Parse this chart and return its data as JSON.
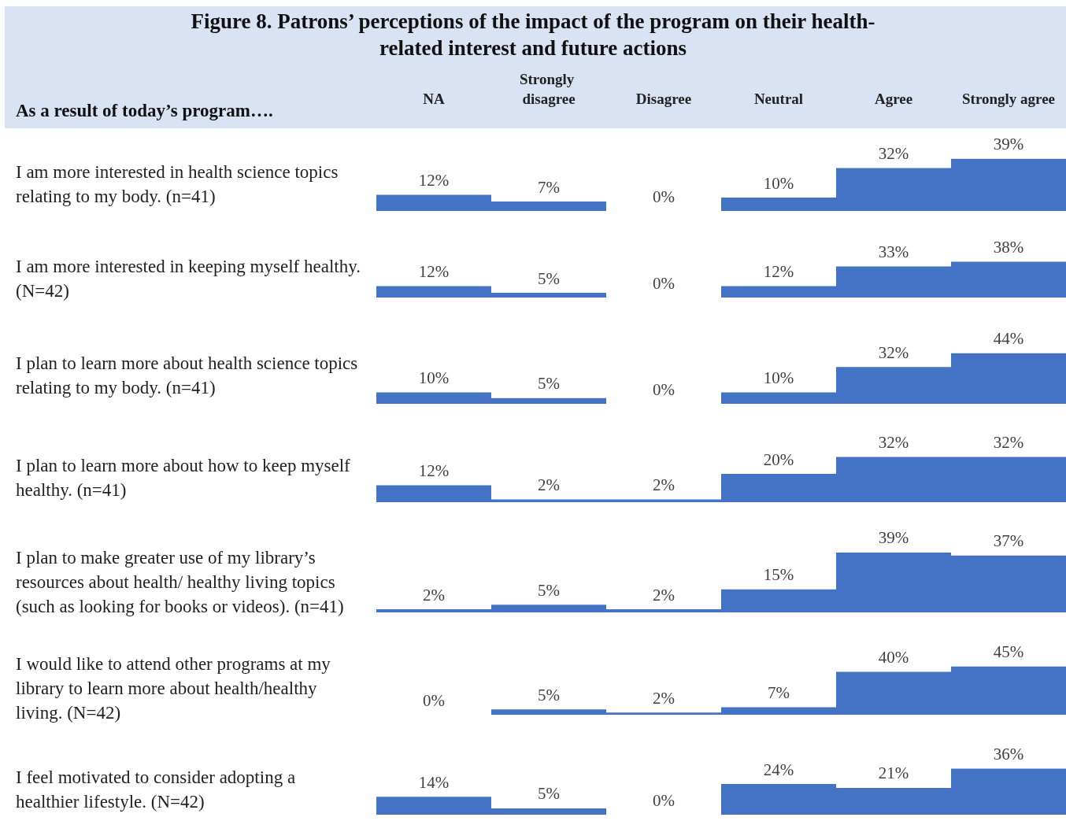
{
  "chart_data": [
    {
      "type": "bar",
      "title": "Figure 8. Patrons’ perceptions of the impact of the program on their health-related interest and future actions",
      "subtitle": "As a result of today’s program….",
      "ylabel": "I am more interested in health science topics relating to my body. (n=41)",
      "categories": [
        "NA",
        "Strongly disagree",
        "Disagree",
        "Neutral",
        "Agree",
        "Strongly agree"
      ],
      "values": [
        12,
        7,
        0,
        10,
        32,
        39
      ],
      "value_labels": [
        "12%",
        "7%",
        "0%",
        "10%",
        "32%",
        "39%"
      ],
      "color": "#4472c4",
      "tick_labels": "x"
    },
    {
      "type": "bar",
      "ylabel": "I am more interested in keeping myself healthy. (N=42)",
      "categories": [
        "NA",
        "Strongly disagree",
        "Disagree",
        "Neutral",
        "Agree",
        "Strongly agree"
      ],
      "values": [
        12,
        5,
        0,
        12,
        33,
        38
      ],
      "value_labels": [
        "12%",
        "5%",
        "0%",
        "12%",
        "33%",
        "38%"
      ],
      "color": "#4472c4",
      "tick_labels": false
    },
    {
      "type": "bar",
      "ylabel": "I plan to learn more about health science topics relating to my body. (n=41)",
      "categories": [
        "NA",
        "Strongly disagree",
        "Disagree",
        "Neutral",
        "Agree",
        "Strongly agree"
      ],
      "values": [
        10,
        5,
        0,
        10,
        32,
        44
      ],
      "value_labels": [
        "10%",
        "5%",
        "0%",
        "10%",
        "32%",
        "44%"
      ],
      "color": "#4472c4",
      "tick_labels": false
    },
    {
      "type": "bar",
      "ylabel": "I plan to learn more about how to keep myself healthy. (n=41)",
      "categories": [
        "NA",
        "Strongly disagree",
        "Disagree",
        "Neutral",
        "Agree",
        "Strongly agree"
      ],
      "values": [
        12,
        2,
        2,
        20,
        32,
        32
      ],
      "value_labels": [
        "12%",
        "2%",
        "2%",
        "20%",
        "32%",
        "32%"
      ],
      "color": "#4472c4",
      "tick_labels": false
    },
    {
      "type": "bar",
      "ylabel": "I plan to make greater use of my library’s resources about health/ healthy living topics (such as looking for books or videos). (n=41)",
      "categories": [
        "NA",
        "Strongly disagree",
        "Disagree",
        "Neutral",
        "Agree",
        "Strongly agree"
      ],
      "values": [
        2,
        5,
        2,
        15,
        39,
        37
      ],
      "value_labels": [
        "2%",
        "5%",
        "2%",
        "15%",
        "39%",
        "37%"
      ],
      "color": "#4472c4",
      "tick_labels": false
    },
    {
      "type": "bar",
      "ylabel": "I would like to attend other programs at my library to learn more about health/healthy living. (N=42)",
      "categories": [
        "NA",
        "Strongly disagree",
        "Disagree",
        "Neutral",
        "Agree",
        "Strongly agree"
      ],
      "values": [
        0,
        5,
        2,
        7,
        40,
        45
      ],
      "value_labels": [
        "0%",
        "5%",
        "2%",
        "7%",
        "40%",
        "45%"
      ],
      "color": "#4472c4",
      "tick_labels": false
    },
    {
      "type": "bar",
      "ylabel": "I feel motivated to consider adopting a healthier lifestyle. (N=42)",
      "categories": [
        "NA",
        "Strongly disagree",
        "Disagree",
        "Neutral",
        "Agree",
        "Strongly agree"
      ],
      "values": [
        14,
        5,
        0,
        24,
        21,
        36
      ],
      "value_labels": [
        "14%",
        "5%",
        "0%",
        "24%",
        "21%",
        "36%"
      ],
      "color": "#4472c4",
      "tick_labels": false
    }
  ]
}
